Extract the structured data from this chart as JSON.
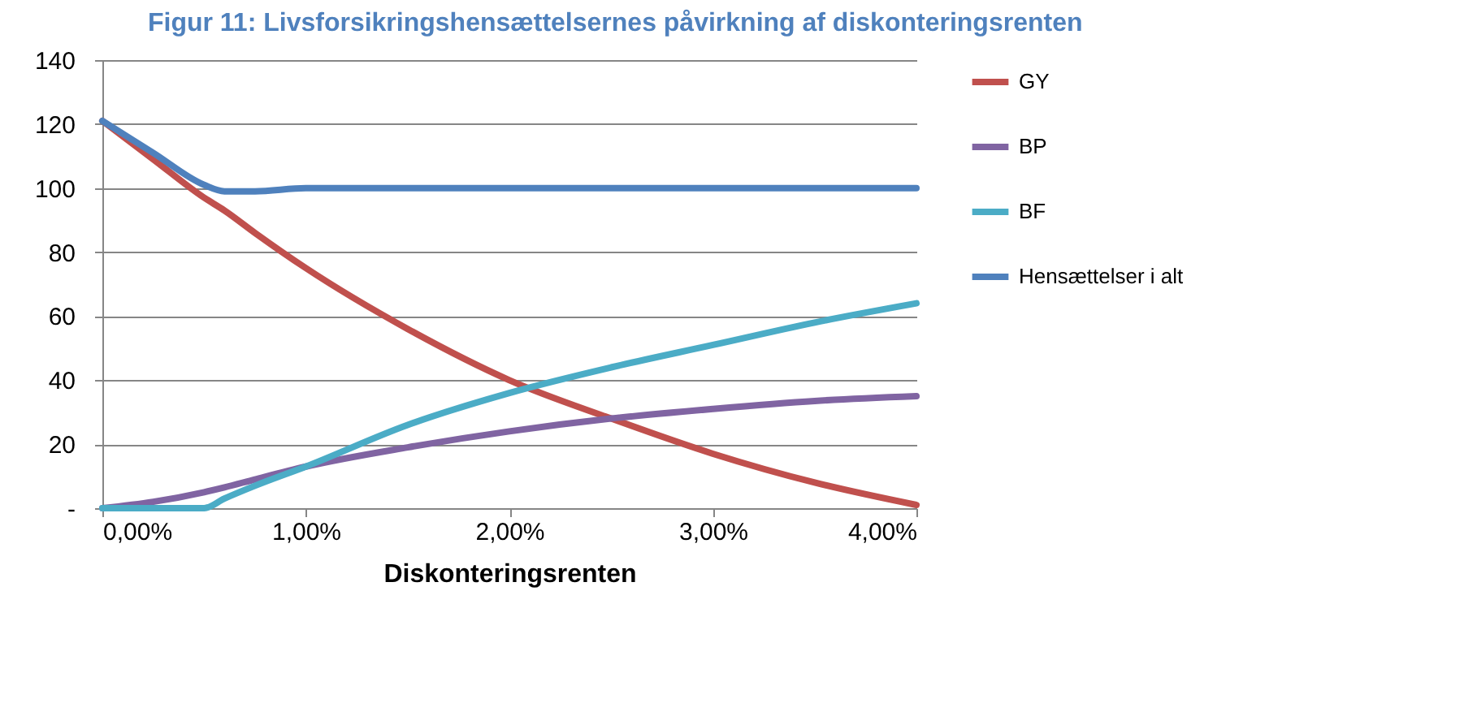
{
  "chart_data": {
    "type": "line",
    "title": "Figur 11: Livsforsikringshensættelsernes påvirkning af diskonteringsrenten",
    "xlabel": "Diskonteringsrenten",
    "x": [
      0,
      0.25,
      0.5,
      0.6,
      0.75,
      1,
      1.5,
      2,
      2.5,
      3,
      3.5,
      4
    ],
    "series": [
      {
        "name": "GY",
        "color": "#c0504d",
        "values": [
          121,
          109,
          97,
          93,
          86,
          75,
          56,
          40,
          28,
          17,
          8,
          1
        ]
      },
      {
        "name": "BP",
        "color": "#8064a2",
        "values": [
          0,
          2,
          5,
          6.5,
          9,
          13,
          19,
          24,
          28,
          31,
          33.5,
          35
        ]
      },
      {
        "name": "BF",
        "color": "#4bacc6",
        "values": [
          0,
          0,
          0,
          3,
          7,
          13,
          26,
          36,
          44,
          51,
          58,
          64
        ]
      },
      {
        "name": "Hensættelser i alt",
        "color": "#4f81bd",
        "values": [
          121,
          111,
          101,
          99,
          99,
          100,
          100,
          100,
          100,
          100,
          100,
          100
        ]
      }
    ],
    "xlim": [
      0,
      4
    ],
    "xticks": [
      {
        "value": 0,
        "label": "0,00%"
      },
      {
        "value": 1,
        "label": "1,00%"
      },
      {
        "value": 2,
        "label": "2,00%"
      },
      {
        "value": 3,
        "label": "3,00%"
      },
      {
        "value": 4,
        "label": "4,00%"
      }
    ],
    "ylim": [
      0,
      140
    ],
    "yticks": [
      {
        "value": 0,
        "label": "-"
      },
      20,
      40,
      60,
      80,
      100,
      120,
      140
    ],
    "grid": "y",
    "legend": "right",
    "marker": "none",
    "line_style": "solid"
  }
}
